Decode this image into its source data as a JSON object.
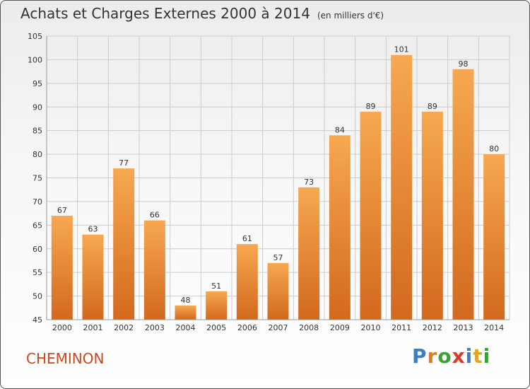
{
  "header": {
    "title": "Achats et Charges Externes 2000 à 2014",
    "subtitle": "(en milliers d'€)"
  },
  "footer": {
    "location": "CHEMINON",
    "logo_letters": [
      {
        "char": "P",
        "color": "#3a7fc4"
      },
      {
        "char": "r",
        "color": "#e07b22"
      },
      {
        "char": "o",
        "color": "#3aa03a"
      },
      {
        "char": "x",
        "color": "#d93a2a"
      },
      {
        "char": "i",
        "color": "#3a7fc4"
      },
      {
        "char": "t",
        "color": "#e0a822"
      },
      {
        "char": "i",
        "color": "#3aa03a"
      }
    ]
  },
  "colors": {
    "bar_top": "#f7a850",
    "bar_bottom": "#d2691e",
    "grid": "#cccccc",
    "axis_text": "#333333"
  },
  "chart_data": {
    "type": "bar",
    "categories": [
      "2000",
      "2001",
      "2002",
      "2003",
      "2004",
      "2005",
      "2006",
      "2007",
      "2008",
      "2009",
      "2010",
      "2011",
      "2012",
      "2013",
      "2014"
    ],
    "values": [
      67,
      63,
      77,
      66,
      48,
      51,
      61,
      57,
      73,
      84,
      89,
      101,
      89,
      98,
      80
    ],
    "ylim": [
      45,
      105
    ],
    "yticks": [
      45,
      50,
      55,
      60,
      65,
      70,
      75,
      80,
      85,
      90,
      95,
      100,
      105
    ],
    "grid": true,
    "data_labels": true
  }
}
